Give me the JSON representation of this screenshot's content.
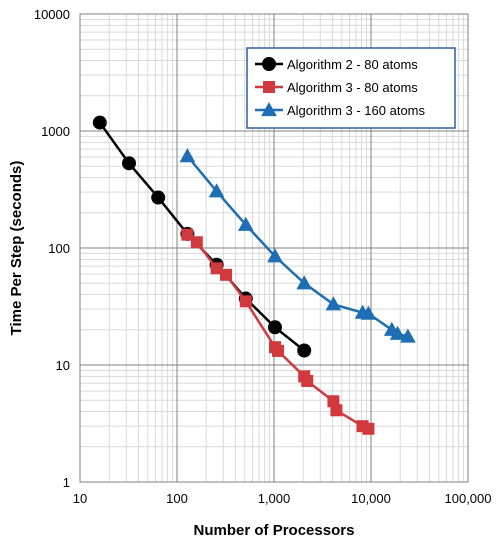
{
  "chart_data": {
    "type": "line",
    "xlabel": "Number of Processors",
    "ylabel": "Time Per Step (seconds)",
    "x_scale": "log",
    "y_scale": "log",
    "xlim": [
      10,
      100000
    ],
    "ylim": [
      1,
      10000
    ],
    "grid": true,
    "legend_position": "top-right",
    "x_ticks": [
      "10",
      "100",
      "1,000",
      "10,000",
      "100,000"
    ],
    "y_ticks": [
      "1",
      "10",
      "100",
      "1000",
      "10000"
    ],
    "series": [
      {
        "name": "Algorithm 2 - 80 atoms",
        "color": "#000000",
        "marker": "circle",
        "x": [
          16,
          32,
          64,
          128,
          256,
          512,
          1024,
          2048
        ],
        "y": [
          1180,
          530,
          270,
          132,
          72,
          37,
          21,
          13.3
        ]
      },
      {
        "name": "Algorithm 3 - 80 atoms",
        "color": "#d0393e",
        "marker": "square",
        "x": [
          128,
          160,
          256,
          320,
          512,
          1024,
          1100,
          2048,
          2200,
          4096,
          4400,
          8192,
          9400
        ],
        "y": [
          130,
          112,
          67,
          59,
          35,
          14.2,
          13.2,
          8,
          7.3,
          4.9,
          4.1,
          3.0,
          2.85
        ]
      },
      {
        "name": "Algorithm 3 - 160 atoms",
        "color": "#1f6eb3",
        "marker": "triangle",
        "x": [
          128,
          256,
          512,
          1024,
          2048,
          4096,
          8192,
          9400,
          16384,
          18800,
          24000
        ],
        "y": [
          610,
          305,
          158,
          85,
          50,
          33,
          28,
          27.5,
          20,
          18.5,
          17.5
        ]
      }
    ]
  }
}
